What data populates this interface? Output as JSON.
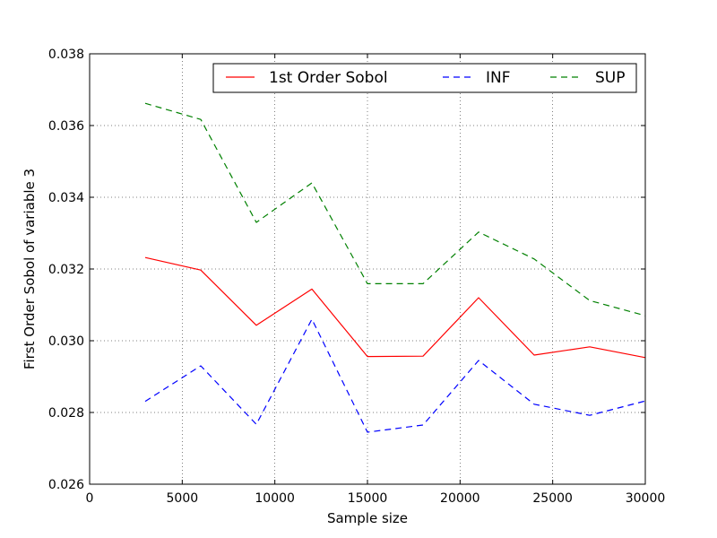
{
  "chart_data": {
    "type": "line",
    "xlabel": "Sample size",
    "ylabel": "First Order Sobol of variable 3",
    "xlim": [
      0,
      30000
    ],
    "ylim": [
      0.026,
      0.038
    ],
    "grid": true,
    "legend_position": "top-right",
    "x_ticks": [
      0,
      5000,
      10000,
      15000,
      20000,
      25000,
      30000
    ],
    "x_tick_labels": [
      "0",
      "5000",
      "10000",
      "15000",
      "20000",
      "25000",
      "30000"
    ],
    "y_ticks": [
      0.026,
      0.028,
      0.03,
      0.032,
      0.034,
      0.036,
      0.038
    ],
    "y_tick_labels": [
      "0.026",
      "0.028",
      "0.030",
      "0.032",
      "0.034",
      "0.036",
      "0.038"
    ],
    "x": [
      3000,
      6000,
      9000,
      12000,
      15000,
      18000,
      21000,
      24000,
      27000,
      30000
    ],
    "series": [
      {
        "name": "1st Order Sobol",
        "color": "#ff0000",
        "dash": "solid",
        "values": [
          0.03232,
          0.03197,
          0.03043,
          0.03144,
          0.02956,
          0.02957,
          0.0312,
          0.0296,
          0.02983,
          0.02953
        ]
      },
      {
        "name": "INF",
        "color": "#0000ff",
        "dash": "dashed",
        "values": [
          0.02831,
          0.0293,
          0.02767,
          0.0306,
          0.02745,
          0.02765,
          0.02945,
          0.02823,
          0.02792,
          0.02832
        ]
      },
      {
        "name": "SUP",
        "color": "#008000",
        "dash": "dashed",
        "values": [
          0.03662,
          0.03617,
          0.0333,
          0.0344,
          0.03159,
          0.03159,
          0.03303,
          0.03228,
          0.03112,
          0.0307
        ]
      }
    ]
  }
}
